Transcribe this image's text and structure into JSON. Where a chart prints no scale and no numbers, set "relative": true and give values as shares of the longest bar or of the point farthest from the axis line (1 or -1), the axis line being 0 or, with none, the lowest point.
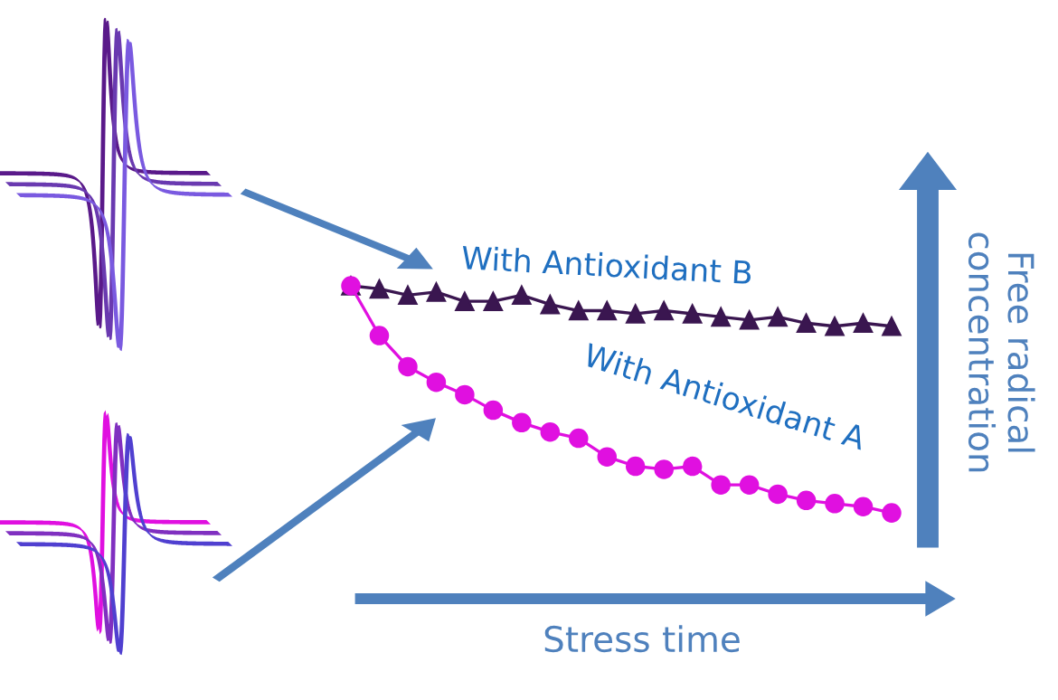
{
  "chart_data": {
    "type": "line",
    "relative": true,
    "xlabel": "Stress time",
    "ylabel": "Free radical\nconcentration",
    "categories": [
      null,
      null,
      null,
      null,
      null,
      null,
      null,
      null,
      null,
      null,
      null,
      null,
      null,
      null,
      null,
      null,
      null,
      null,
      null,
      null
    ],
    "series": [
      {
        "name": "With Antioxidant B",
        "color": "#3a1650",
        "marker": "triangle",
        "values": [
          1.0,
          0.99,
          0.97,
          0.98,
          0.95,
          0.95,
          0.97,
          0.94,
          0.92,
          0.92,
          0.91,
          0.92,
          0.91,
          0.9,
          0.89,
          0.9,
          0.88,
          0.87,
          0.88,
          0.87
        ]
      },
      {
        "name": "With Antioxidant A",
        "color": "#e010e0",
        "marker": "circle",
        "values": [
          1.0,
          0.84,
          0.74,
          0.69,
          0.65,
          0.6,
          0.56,
          0.53,
          0.51,
          0.45,
          0.42,
          0.41,
          0.42,
          0.36,
          0.36,
          0.33,
          0.31,
          0.3,
          0.29,
          0.27
        ]
      }
    ]
  }
}
